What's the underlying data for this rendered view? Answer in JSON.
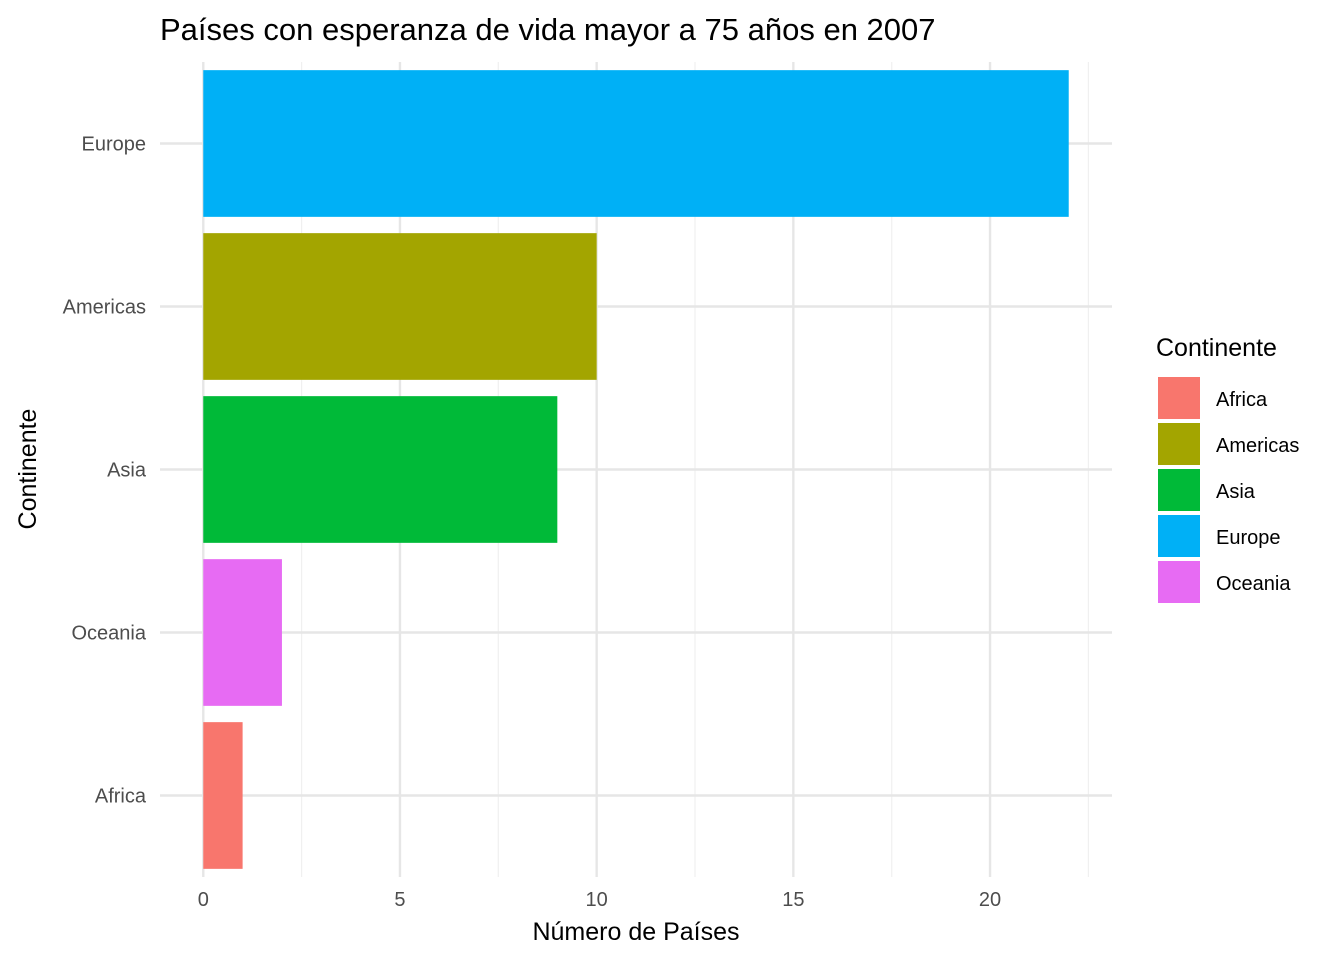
{
  "chart_data": {
    "type": "bar",
    "orientation": "horizontal",
    "title": "Países con esperanza de vida mayor a 75 años en 2007",
    "xlabel": "Número de Países",
    "ylabel": "Continente",
    "categories": [
      "Africa",
      "Oceania",
      "Asia",
      "Americas",
      "Europe"
    ],
    "values": [
      1,
      2,
      9,
      10,
      22
    ],
    "colors": [
      "#F8766D",
      "#E76BF3",
      "#00BA38",
      "#A3A500",
      "#00B0F6"
    ],
    "x_ticks": [
      0,
      5,
      10,
      15,
      20
    ],
    "xlim": [
      -1.1,
      23.1
    ],
    "grid": true,
    "legend": {
      "title": "Continente",
      "placement": "right",
      "entries": [
        {
          "label": "Africa",
          "color": "#F8766D"
        },
        {
          "label": "Americas",
          "color": "#A3A500"
        },
        {
          "label": "Asia",
          "color": "#00BA38"
        },
        {
          "label": "Europe",
          "color": "#00B0F6"
        },
        {
          "label": "Oceania",
          "color": "#E76BF3"
        }
      ]
    }
  }
}
